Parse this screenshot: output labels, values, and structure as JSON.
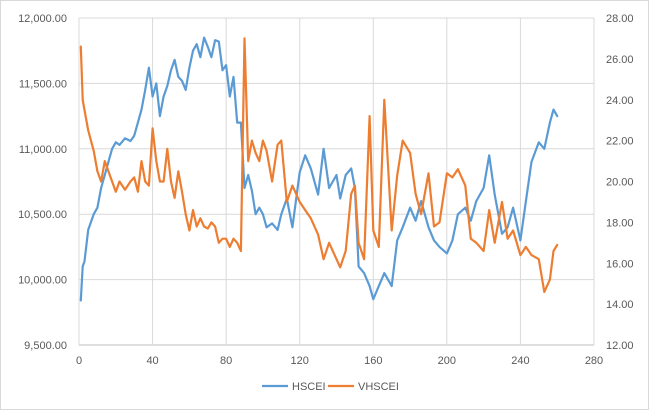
{
  "chart_data": {
    "type": "line",
    "title": "",
    "xlabel": "",
    "ylabel": "",
    "xlim": [
      0,
      280
    ],
    "ylim": [
      9500,
      12000
    ],
    "y2lim": [
      12,
      28
    ],
    "x_ticks": [
      "0",
      "40",
      "80",
      "120",
      "160",
      "200",
      "240",
      "280"
    ],
    "y_ticks": [
      "9,500.00",
      "10,000.00",
      "10,500.00",
      "11,000.00",
      "11,500.00",
      "12,000.00"
    ],
    "y2_ticks": [
      "12.00",
      "14.00",
      "16.00",
      "18.00",
      "20.00",
      "22.00",
      "24.00",
      "26.00",
      "28.00"
    ],
    "grid": "horizontal",
    "legend_position": "bottom",
    "series": [
      {
        "name": "HSCEI",
        "axis": "left",
        "color": "#5b9bd5",
        "x": [
          1,
          2,
          3,
          5,
          8,
          10,
          12,
          14,
          16,
          18,
          20,
          22,
          25,
          28,
          30,
          32,
          34,
          36,
          38,
          40,
          42,
          44,
          46,
          48,
          50,
          52,
          54,
          56,
          58,
          60,
          62,
          64,
          66,
          68,
          70,
          72,
          74,
          76,
          78,
          80,
          82,
          84,
          86,
          88,
          90,
          92,
          94,
          96,
          98,
          100,
          102,
          105,
          108,
          110,
          113,
          116,
          120,
          123,
          126,
          130,
          133,
          136,
          140,
          142,
          145,
          148,
          150,
          152,
          155,
          158,
          160,
          163,
          166,
          170,
          173,
          176,
          180,
          183,
          186,
          190,
          193,
          196,
          200,
          203,
          206,
          210,
          213,
          216,
          220,
          223,
          226,
          230,
          233,
          236,
          240,
          243,
          246,
          250,
          253,
          256,
          258,
          260
        ],
        "y": [
          9840,
          10100,
          10140,
          10380,
          10500,
          10550,
          10700,
          10800,
          10900,
          11000,
          11050,
          11030,
          11080,
          11060,
          11100,
          11200,
          11300,
          11450,
          11620,
          11400,
          11500,
          11250,
          11400,
          11480,
          11600,
          11680,
          11550,
          11520,
          11450,
          11620,
          11750,
          11800,
          11700,
          11850,
          11780,
          11700,
          11830,
          11820,
          11600,
          11640,
          11400,
          11550,
          11200,
          11200,
          10700,
          10800,
          10680,
          10500,
          10550,
          10500,
          10400,
          10430,
          10380,
          10500,
          10620,
          10400,
          10820,
          10950,
          10850,
          10650,
          11000,
          10700,
          10800,
          10620,
          10800,
          10850,
          10700,
          10100,
          10050,
          9950,
          9850,
          9950,
          10050,
          9950,
          10300,
          10400,
          10550,
          10450,
          10600,
          10400,
          10300,
          10250,
          10200,
          10300,
          10500,
          10550,
          10450,
          10600,
          10700,
          10950,
          10650,
          10350,
          10400,
          10550,
          10300,
          10600,
          10900,
          11050,
          11000,
          11200,
          11300,
          11250
        ]
      },
      {
        "name": "VHSCEI",
        "axis": "right",
        "color": "#ed7d31",
        "x": [
          1,
          2,
          3,
          5,
          8,
          10,
          12,
          14,
          16,
          18,
          20,
          22,
          25,
          28,
          30,
          32,
          34,
          36,
          38,
          40,
          42,
          44,
          46,
          48,
          50,
          52,
          54,
          56,
          58,
          60,
          62,
          64,
          66,
          68,
          70,
          72,
          74,
          76,
          78,
          80,
          82,
          84,
          86,
          88,
          90,
          92,
          94,
          96,
          98,
          100,
          102,
          105,
          108,
          110,
          113,
          116,
          120,
          123,
          126,
          130,
          133,
          136,
          140,
          142,
          145,
          148,
          150,
          152,
          155,
          158,
          160,
          163,
          166,
          170,
          173,
          176,
          180,
          183,
          186,
          190,
          193,
          196,
          200,
          203,
          206,
          210,
          213,
          216,
          220,
          223,
          226,
          230,
          233,
          236,
          240,
          243,
          246,
          250,
          253,
          256,
          258,
          260
        ],
        "y": [
          26.6,
          24,
          23.5,
          22.5,
          21.5,
          20.5,
          20,
          21,
          20.5,
          20,
          19.5,
          20,
          19.6,
          20,
          20.2,
          19.5,
          21,
          20,
          19.8,
          22.6,
          21,
          20,
          20,
          21.6,
          20,
          19.2,
          20.5,
          19.5,
          18.4,
          17.6,
          18.6,
          17.8,
          18.2,
          17.8,
          17.7,
          18,
          17.8,
          17,
          17.2,
          17.2,
          16.8,
          17.2,
          17,
          16.6,
          27,
          21,
          22,
          21.4,
          21,
          22,
          21.5,
          20,
          21.8,
          22,
          19,
          19.8,
          19,
          18.6,
          18.2,
          17.4,
          16.2,
          17,
          16.2,
          15.8,
          16.6,
          19.4,
          19.8,
          17,
          16.2,
          23.2,
          17.6,
          16.8,
          24,
          17.6,
          20.3,
          22,
          21.4,
          19.4,
          18.4,
          20.4,
          17.8,
          18,
          20.4,
          20.2,
          20.6,
          19.8,
          17.2,
          17,
          16.6,
          18.6,
          17,
          19,
          17.2,
          17.6,
          16.4,
          16.8,
          16.4,
          16.2,
          14.6,
          15.2,
          16.6,
          16.9
        ]
      }
    ]
  }
}
